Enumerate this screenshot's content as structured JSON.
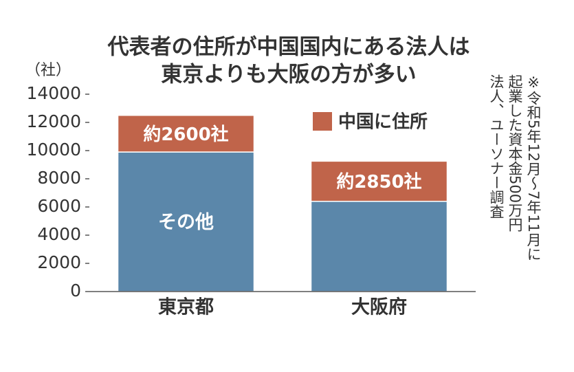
{
  "chart_data": {
    "type": "stacked_bar",
    "title": [
      "代表者の住所が中国国内にある法人は",
      "東京よりも大阪の方が多い"
    ],
    "y_label": "（社）",
    "categories": [
      "東京都",
      "大阪府"
    ],
    "series": [
      {
        "name": "その他",
        "color": "#5b87aa",
        "values": [
          9900,
          6400
        ]
      },
      {
        "name": "中国に住所",
        "color": "#c0644a",
        "values": [
          2600,
          2850
        ],
        "value_labels": [
          "約2600社",
          "約2850社"
        ]
      }
    ],
    "ylim": [
      0,
      14000
    ],
    "yticks": [
      0,
      2000,
      4000,
      6000,
      8000,
      10000,
      12000,
      14000
    ],
    "legend": "top-right",
    "note": [
      "※令和5年12月～7年11月に",
      "起業した資本金500万円",
      "法人、ユーソナー調査"
    ]
  }
}
